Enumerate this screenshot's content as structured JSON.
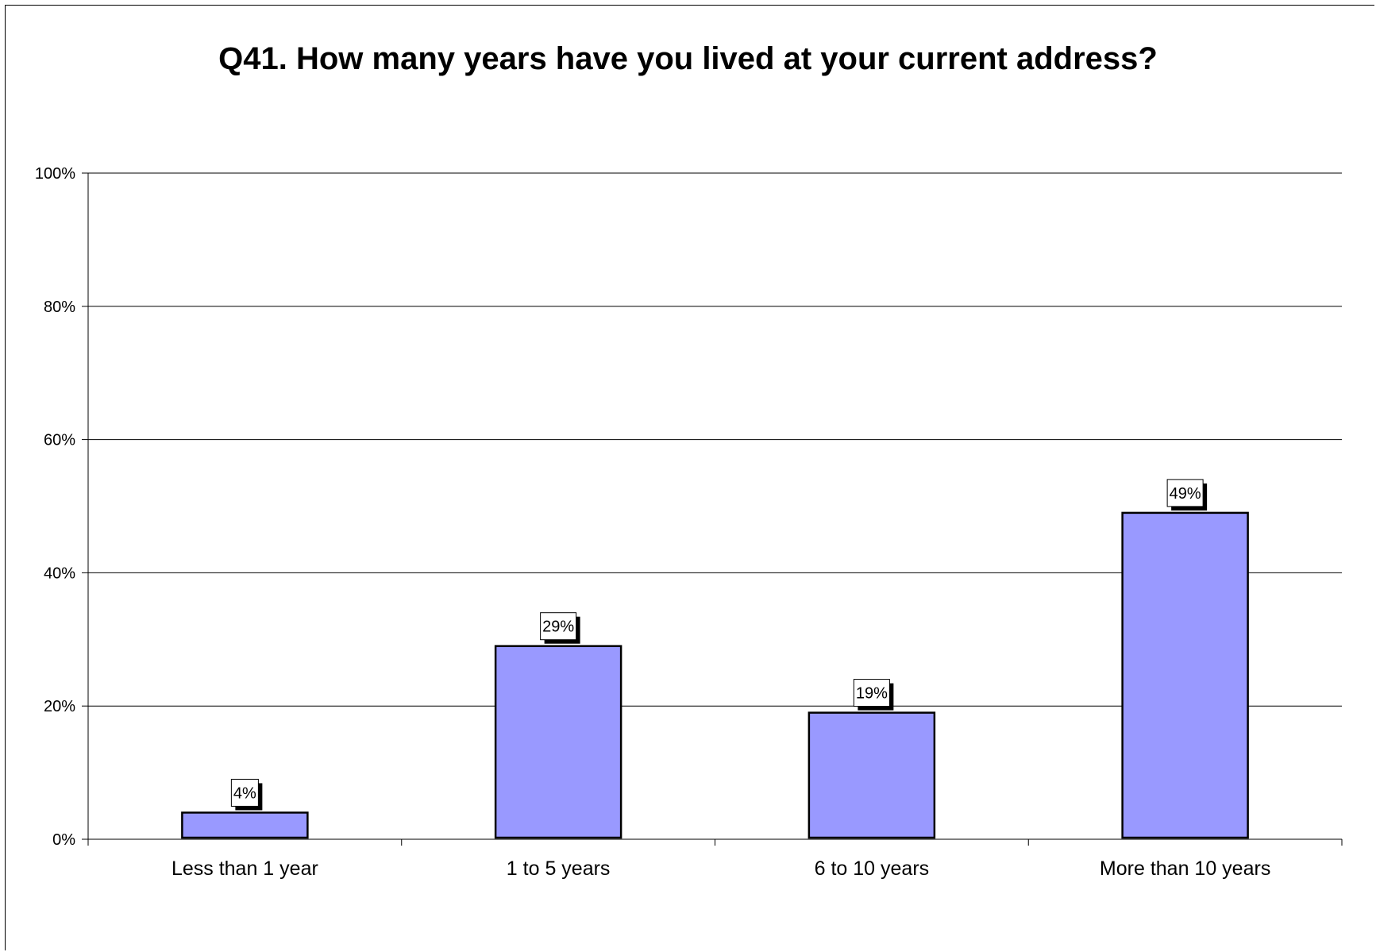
{
  "chart_data": {
    "type": "bar",
    "title": "Q41.  How many years have you lived at your current address?",
    "xlabel": "",
    "ylabel": "",
    "categories": [
      "Less than 1 year",
      "1 to 5 years",
      "6 to 10 years",
      "More than 10 years"
    ],
    "values": [
      4,
      29,
      19,
      49
    ],
    "data_labels": [
      "4%",
      "29%",
      "19%",
      "49%"
    ],
    "ylim": [
      0,
      100
    ],
    "yticks": [
      0,
      20,
      40,
      60,
      80,
      100
    ],
    "ytick_labels": [
      "0%",
      "20%",
      "40%",
      "60%",
      "80%",
      "100%"
    ],
    "grid": true,
    "legend": "none",
    "colors": {
      "bar_fill": "#9999FF",
      "bar_stroke": "#000000",
      "grid": "#000000",
      "label_box": "#FFFFFF"
    }
  }
}
